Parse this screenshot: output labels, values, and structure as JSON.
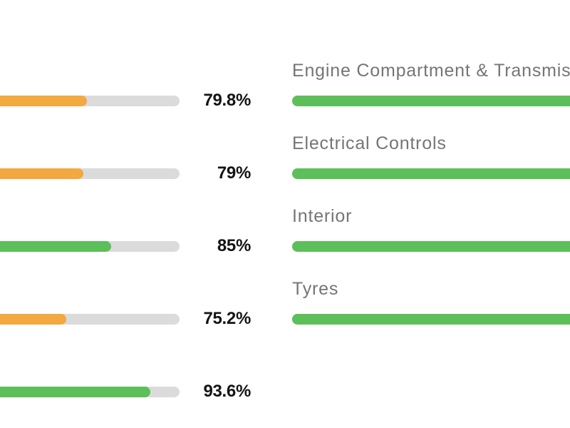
{
  "colors": {
    "green": "#5CBF59",
    "orange": "#F3A840",
    "track": "#DBDBDB",
    "label_text": "#757575",
    "value_text": "#141414",
    "background": "#ffffff"
  },
  "inspection": {
    "left_items": [
      {
        "value_label": "79.8%",
        "percent": 79.8,
        "color": "orange"
      },
      {
        "value_label": "79%",
        "percent": 79,
        "color": "orange"
      },
      {
        "value_label": "85%",
        "percent": 85,
        "color": "green"
      },
      {
        "value_label": "75.2%",
        "percent": 75.2,
        "color": "orange"
      },
      {
        "value_label": "93.6%",
        "percent": 93.6,
        "color": "green"
      }
    ],
    "right_items": [
      {
        "label": "Engine Compartment & Transmission",
        "color": "green",
        "fill_clipped_offscreen": true
      },
      {
        "label": "Electrical Controls",
        "color": "green",
        "fill_clipped_offscreen": true
      },
      {
        "label": "Interior",
        "color": "green",
        "fill_clipped_offscreen": true
      },
      {
        "label": "Tyres",
        "color": "green",
        "fill_clipped_offscreen": true
      }
    ]
  },
  "chart_data": {
    "type": "bar",
    "subtype": "horizontal-progress-bars",
    "unit": "%",
    "value_range": [
      0,
      100
    ],
    "grid": false,
    "legend": false,
    "series": [
      {
        "name": "left-column (category labels cropped off-screen left)",
        "categories": [
          null,
          null,
          null,
          null,
          null
        ],
        "values": [
          79.8,
          79,
          85,
          75.2,
          93.6
        ],
        "bar_colors": [
          "#F3A840",
          "#F3A840",
          "#5CBF59",
          "#F3A840",
          "#5CBF59"
        ]
      },
      {
        "name": "right-column (percent values cropped off-screen right)",
        "categories": [
          "Engine Compartment & Transmission",
          "Electrical Controls",
          "Interior",
          "Tyres"
        ],
        "values": [
          null,
          null,
          null,
          null
        ],
        "bar_colors": [
          "#5CBF59",
          "#5CBF59",
          "#5CBF59",
          "#5CBF59"
        ]
      }
    ]
  }
}
